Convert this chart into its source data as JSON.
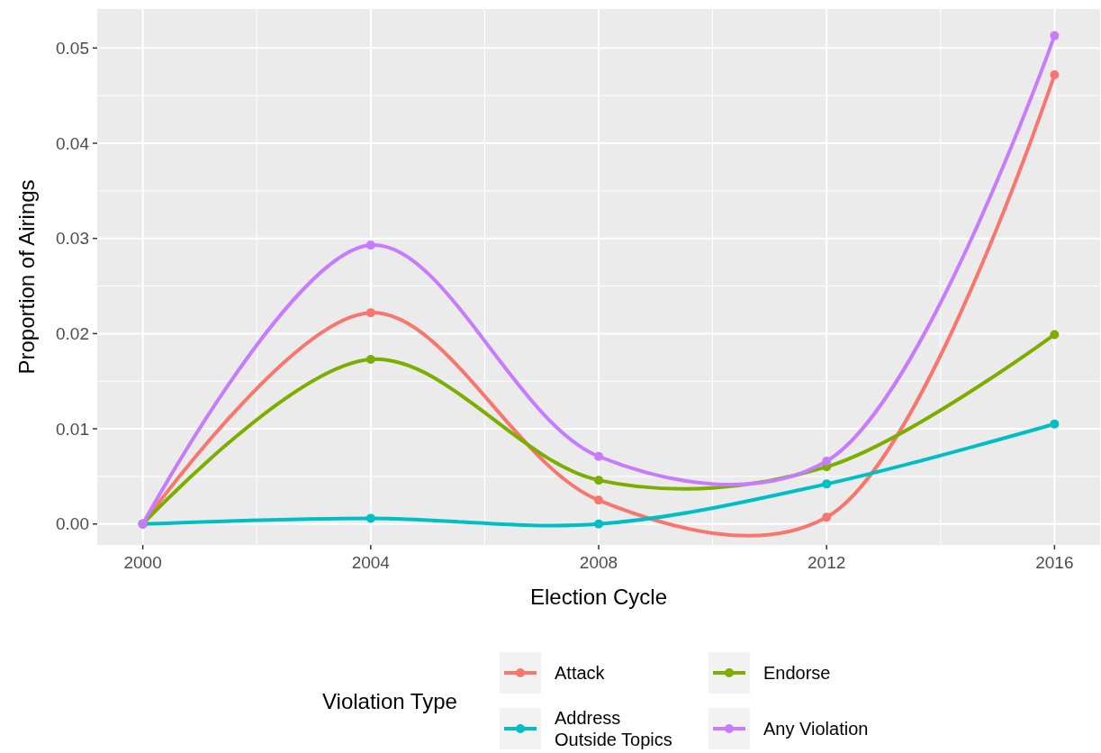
{
  "chart_data": {
    "type": "line",
    "xlabel": "Election Cycle",
    "ylabel": "Proportion of Airings",
    "legend_title": "Violation Type",
    "x": [
      2000,
      2004,
      2008,
      2012,
      2016
    ],
    "series": [
      {
        "name": "Attack",
        "color": "#f8766d",
        "values": [
          0,
          0.0222,
          0.0025,
          0.0007,
          0.0472
        ]
      },
      {
        "name": "Address\nOutside Topics",
        "color": "#00bfc4",
        "values": [
          0,
          0.0006,
          0,
          0.0042,
          0.0105
        ]
      },
      {
        "name": "Endorse",
        "color": "#7cae00",
        "values": [
          0,
          0.0173,
          0.0046,
          0.006,
          0.0199
        ]
      },
      {
        "name": "Any Violation",
        "color": "#c77cff",
        "values": [
          0,
          0.0293,
          0.0071,
          0.0066,
          0.0513
        ]
      }
    ],
    "xlim": [
      1999.2,
      2016.8
    ],
    "xticks": [
      2000,
      2004,
      2008,
      2012,
      2016
    ],
    "ylim": [
      -0.0022,
      0.0541
    ],
    "yticks": [
      {
        "value": 0,
        "label": "0.00"
      },
      {
        "value": 0.01,
        "label": "0.01"
      },
      {
        "value": 0.02,
        "label": "0.02"
      },
      {
        "value": 0.03,
        "label": "0.03"
      },
      {
        "value": 0.04,
        "label": "0.04"
      },
      {
        "value": 0.05,
        "label": "0.05"
      }
    ],
    "grid": true,
    "legend": "bottom",
    "marker": "circle",
    "line_style": "solid"
  }
}
